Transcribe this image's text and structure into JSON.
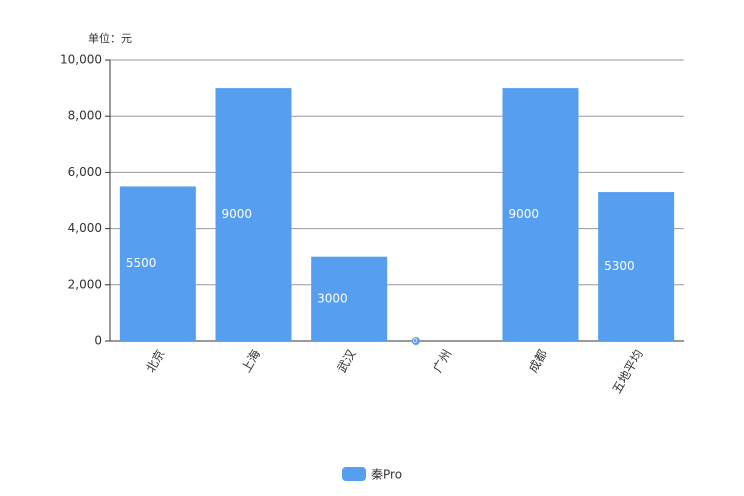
{
  "chart_data": {
    "type": "bar",
    "y_axis_label": "单位：元",
    "categories": [
      "北京",
      "上海",
      "武汉",
      "广州",
      "成都",
      "五地平均"
    ],
    "series": [
      {
        "name": "秦Pro",
        "color": "#559ef0",
        "values": [
          5500,
          9000,
          3000,
          0,
          9000,
          5300
        ]
      }
    ],
    "ylim": [
      0,
      10000
    ],
    "yticks": [
      0,
      {
        "value": 2000,
        "label": "2,000"
      },
      {
        "value": 4000,
        "label": "4,000"
      },
      {
        "value": 6000,
        "label": "6,000"
      },
      {
        "value": 8000,
        "label": "8,000"
      },
      {
        "value": 10000,
        "label": "10,000"
      }
    ],
    "grid": true
  }
}
